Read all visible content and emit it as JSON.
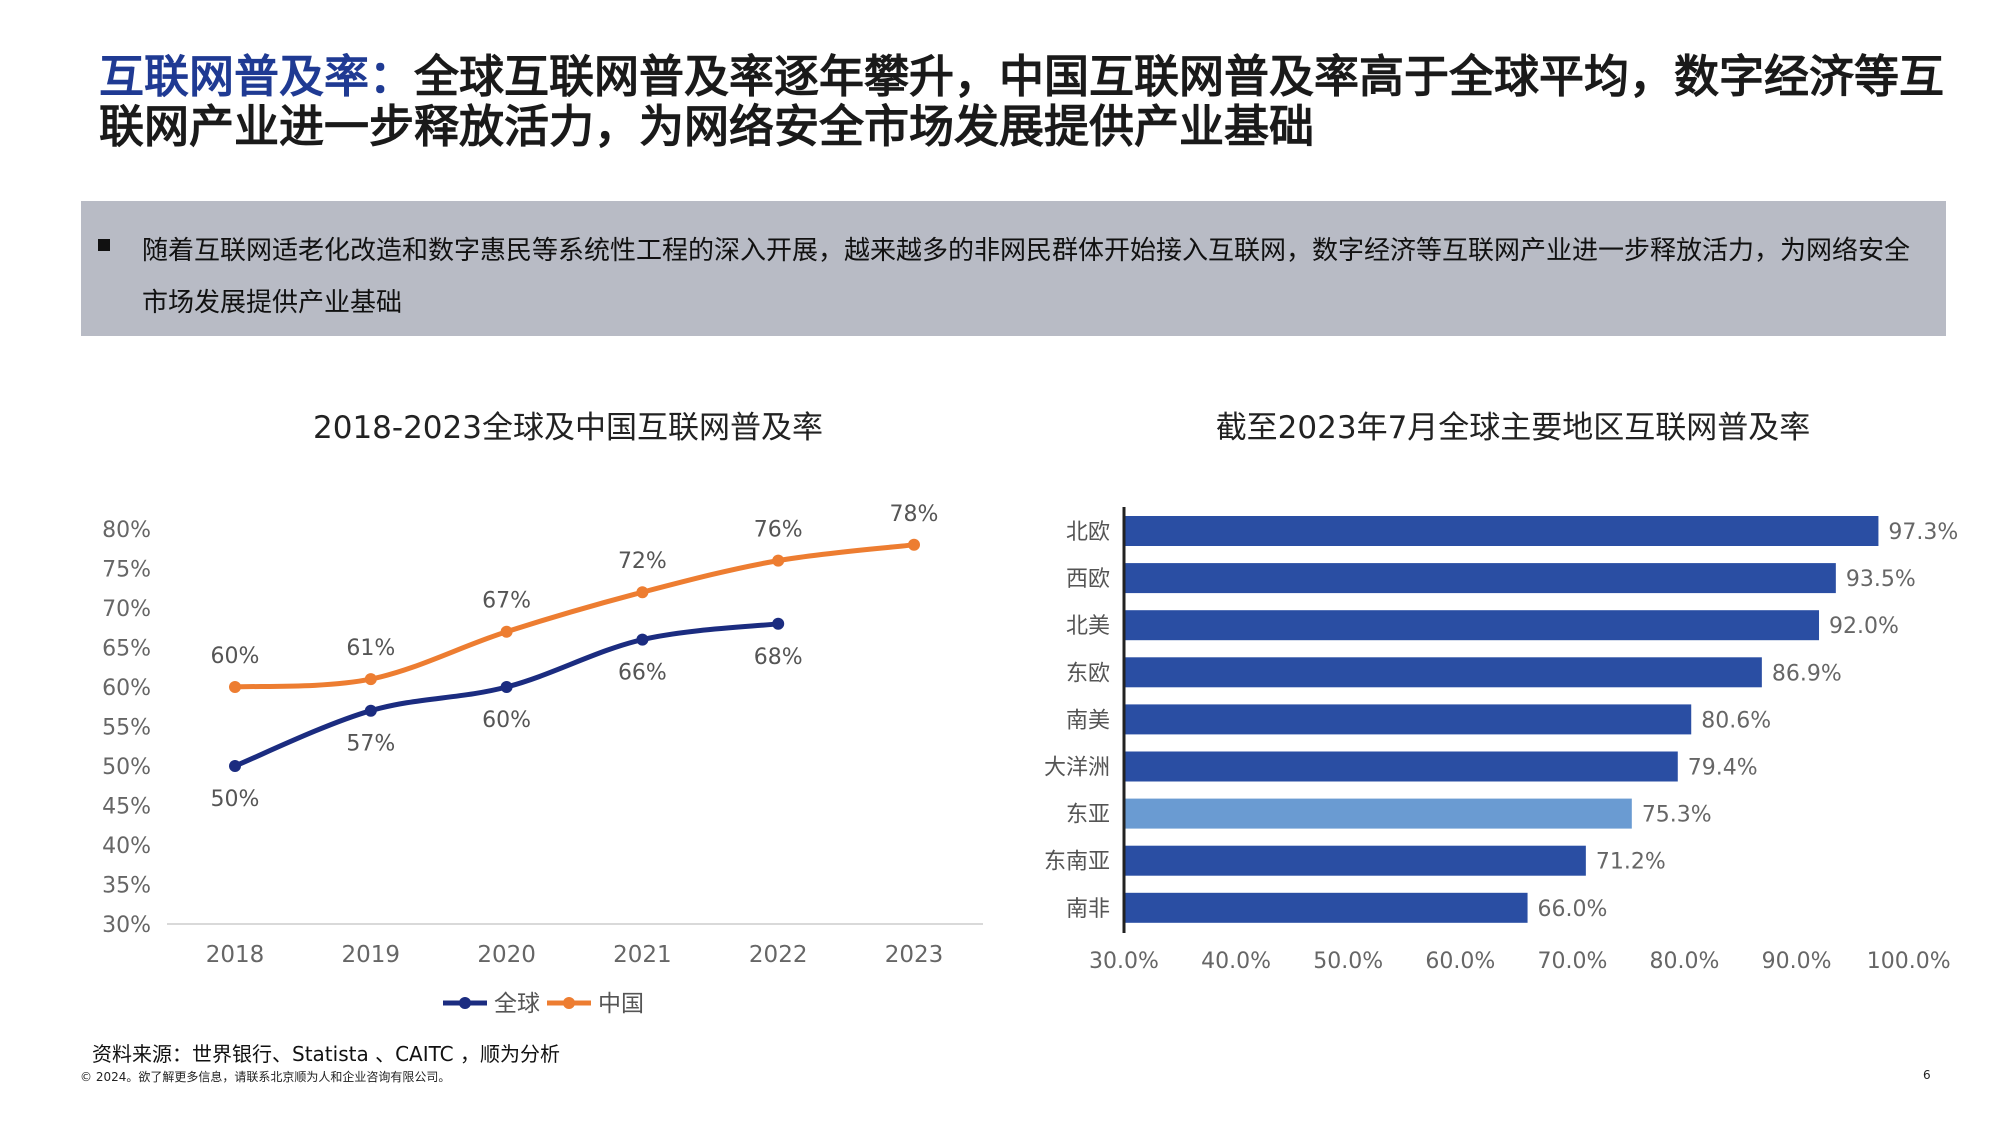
{
  "header": {
    "title_highlight": "互联网普及率：",
    "title_rest": "全球互联网普及率逐年攀升，中国互联网普及率高于全球平均，数字经济等互联网产业进一步释放活力，为网络安全市场发展提供产业基础"
  },
  "note": {
    "text": "随着互联网适老化改造和数字惠民等系统性工程的深入开展，越来越多的非网民群体开始接入互联网，数字经济等互联网产业进一步释放活力，为网络安全市场发展提供产业基础"
  },
  "chart_data": [
    {
      "type": "line",
      "title": "2018-2023全球及中国互联网普及率",
      "categories": [
        "2018",
        "2019",
        "2020",
        "2021",
        "2022",
        "2023"
      ],
      "ylim": [
        30,
        80
      ],
      "yticks": [
        "30%",
        "35%",
        "40%",
        "45%",
        "50%",
        "55%",
        "60%",
        "65%",
        "70%",
        "75%",
        "80%"
      ],
      "legend_position": "bottom",
      "grid": false,
      "series": [
        {
          "name": "全球",
          "color": "#1b2c80",
          "values": [
            50,
            57,
            60,
            66,
            68,
            null
          ],
          "labels": [
            "50%",
            "57%",
            "60%",
            "66%",
            "68%",
            ""
          ]
        },
        {
          "name": "中国",
          "color": "#ed7d31",
          "values": [
            60,
            61,
            67,
            72,
            76,
            78
          ],
          "labels": [
            "60%",
            "61%",
            "67%",
            "72%",
            "76%",
            "78%"
          ]
        }
      ]
    },
    {
      "type": "bar",
      "orientation": "horizontal",
      "title": "截至2023年7月全球主要地区互联网普及率",
      "categories": [
        "北欧",
        "西欧",
        "北美",
        "东欧",
        "南美",
        "大洋洲",
        "东亚",
        "东南亚",
        "南非"
      ],
      "values": [
        97.3,
        93.5,
        92.0,
        86.9,
        80.6,
        79.4,
        75.3,
        71.2,
        66.0
      ],
      "labels": [
        "97.3%",
        "93.5%",
        "92.0%",
        "86.9%",
        "80.6%",
        "79.4%",
        "75.3%",
        "71.2%",
        "66.0%"
      ],
      "highlight": "东亚",
      "colors": {
        "bar": "#2a4ea3",
        "highlight": "#6a9bd2"
      },
      "xlim": [
        30,
        100
      ],
      "xticks": [
        "30.0%",
        "40.0%",
        "50.0%",
        "60.0%",
        "70.0%",
        "80.0%",
        "90.0%",
        "100.0%"
      ]
    }
  ],
  "footer": {
    "source": "资料来源：世界银行、Statista 、CAITC ，顺为分析",
    "copyright": "© 2024。欲了解更多信息，请联系北京顺为人和企业咨询有限公司。",
    "page": "6"
  }
}
